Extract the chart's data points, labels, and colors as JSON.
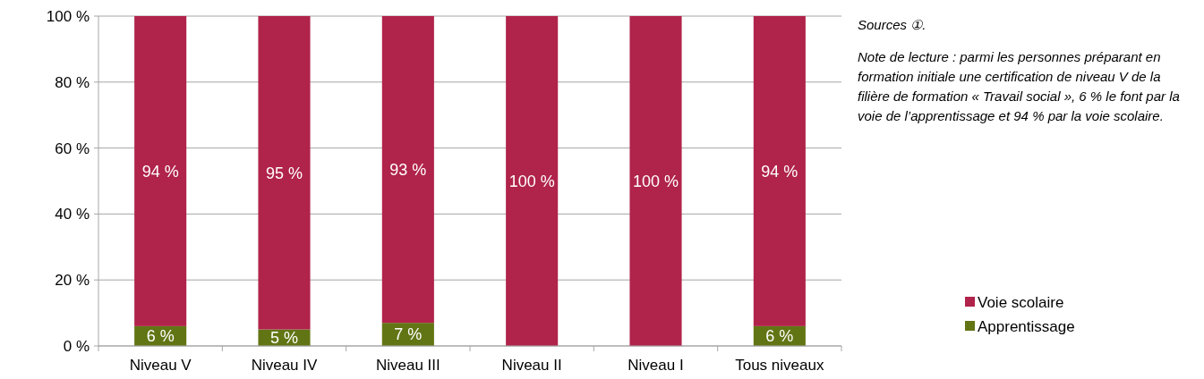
{
  "chart_data": {
    "type": "bar",
    "stacked": true,
    "categories": [
      "Niveau V",
      "Niveau IV",
      "Niveau III",
      "Niveau II",
      "Niveau I",
      "Tous niveaux"
    ],
    "series": [
      {
        "name": "Apprentissage",
        "color": "#627514",
        "values": [
          6,
          5,
          7,
          0,
          0,
          6
        ],
        "value_labels": [
          "6 %",
          "5 %",
          "7 %",
          null,
          null,
          "6 %"
        ]
      },
      {
        "name": "Voie scolaire",
        "color": "#b0234a",
        "values": [
          94,
          95,
          93,
          100,
          100,
          94
        ],
        "value_labels": [
          "94 %",
          "95 %",
          "93 %",
          "100 %",
          "100 %",
          "94 %"
        ]
      }
    ],
    "ylim": [
      0,
      100
    ],
    "yticks": [
      {
        "value": 0,
        "label": "0 %"
      },
      {
        "value": 20,
        "label": "20 %"
      },
      {
        "value": 40,
        "label": "40 %"
      },
      {
        "value": 60,
        "label": "60 %"
      },
      {
        "value": 80,
        "label": "80 %"
      },
      {
        "value": 100,
        "label": "100 %"
      }
    ],
    "grid": "y",
    "legend": "right",
    "annotations": [
      "Sources ①.",
      "Note de lecture : parmi les personnes préparant en formation initiale une certification de niveau V de la filière de formation « Travail social », 6 % le font par la voie de l’apprentissage et 94 % par la voie scolaire."
    ]
  }
}
